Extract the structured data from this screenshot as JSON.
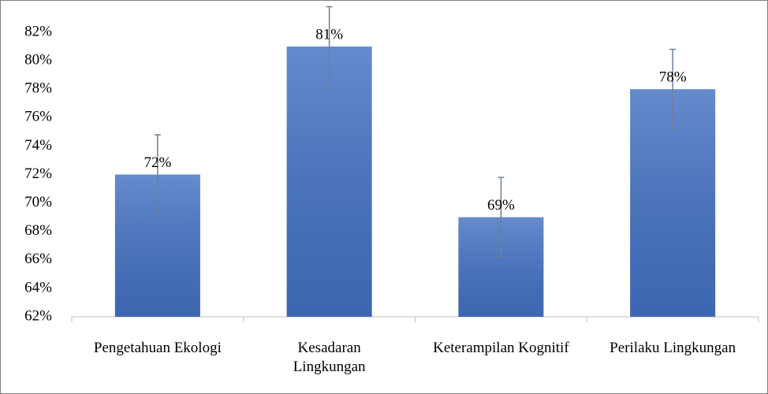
{
  "chart_data": {
    "type": "bar",
    "categories": [
      "Pengetahuan Ekologi",
      "Kesadaran Lingkungan",
      "Keterampilan Kognitif",
      "Perilaku Lingkungan"
    ],
    "values": [
      72,
      81,
      69,
      78
    ],
    "value_labels": [
      "72%",
      "81%",
      "69%",
      "78%"
    ],
    "errors": [
      2.8,
      2.8,
      2.8,
      2.8
    ],
    "color": "#4472c4",
    "ylim": [
      62,
      82
    ],
    "yticks": [
      {
        "value": 62,
        "label": "62%"
      },
      {
        "value": 64,
        "label": "64%"
      },
      {
        "value": 66,
        "label": "66%"
      },
      {
        "value": 68,
        "label": "68%"
      },
      {
        "value": 70,
        "label": "70%"
      },
      {
        "value": 72,
        "label": "72%"
      },
      {
        "value": 74,
        "label": "74%"
      },
      {
        "value": 76,
        "label": "76%"
      },
      {
        "value": 78,
        "label": "78%"
      },
      {
        "value": 80,
        "label": "80%"
      },
      {
        "value": 82,
        "label": "82%"
      }
    ],
    "grid": false
  }
}
